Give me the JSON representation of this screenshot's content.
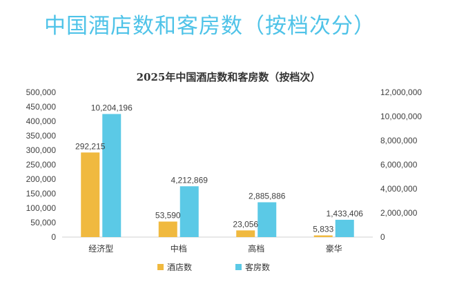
{
  "page": {
    "title": "中国酒店数和客房数（按档次分）"
  },
  "chart_data": {
    "type": "bar",
    "title": "2025年中国酒店数和客房数（按档次）",
    "categories": [
      "经济型",
      "中档",
      "高档",
      "豪华"
    ],
    "series": [
      {
        "name": "酒店数",
        "axis": "left",
        "color": "#f0b93f",
        "values": [
          292215,
          53590,
          23056,
          5833
        ],
        "labels": [
          "292,215",
          "53,590",
          "23,056",
          "5,833"
        ]
      },
      {
        "name": "客房数",
        "axis": "right",
        "color": "#5bc9e6",
        "values": [
          10204196,
          4212869,
          2885886,
          1433406
        ],
        "labels": [
          "10,204,196",
          "4,212,869",
          "2,885,886",
          "1,433,406"
        ]
      }
    ],
    "y_left": {
      "range": [
        0,
        500000
      ],
      "ticks": [
        "0",
        "50,000",
        "100,000",
        "150,000",
        "200,000",
        "250,000",
        "300,000",
        "350,000",
        "400,000",
        "450,000",
        "500,000"
      ]
    },
    "y_right": {
      "range": [
        0,
        12000000
      ],
      "ticks": [
        "0",
        "2,000,000",
        "4,000,000",
        "6,000,000",
        "8,000,000",
        "10,000,000",
        "12,000,000"
      ]
    },
    "legend": "bottom",
    "grid": false
  }
}
